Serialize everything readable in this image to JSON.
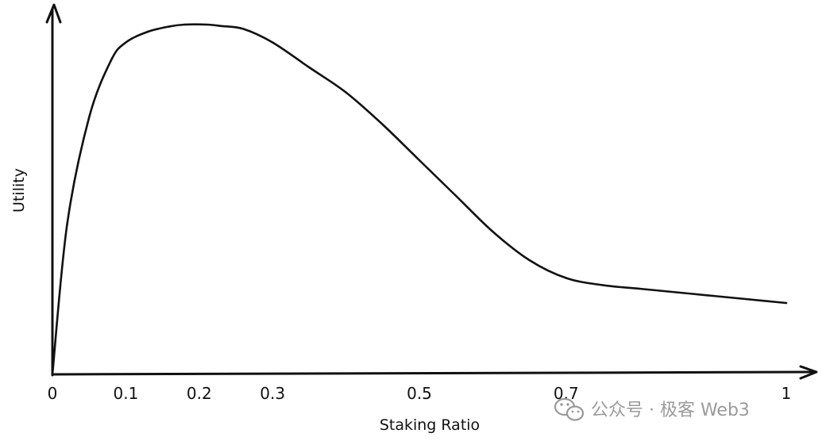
{
  "chart_data": {
    "type": "line",
    "xlabel": "Staking Ratio",
    "ylabel": "Utility",
    "xlim": [
      0,
      1
    ],
    "ylim": [
      0,
      1
    ],
    "x_ticks": [
      0,
      0.1,
      0.2,
      0.3,
      0.5,
      0.7,
      1
    ],
    "x_tick_labels": [
      "0",
      "0.1",
      "0.2",
      "0.3",
      "0.5",
      "0.7",
      "1"
    ],
    "grid": false,
    "series": [
      {
        "x": [
          0,
          0.02,
          0.05,
          0.08,
          0.1,
          0.13,
          0.16,
          0.18,
          0.21,
          0.23,
          0.26,
          0.3,
          0.35,
          0.4,
          0.45,
          0.5,
          0.55,
          0.6,
          0.65,
          0.7,
          0.75,
          0.8,
          0.85,
          0.9,
          0.95,
          1
        ],
        "y": [
          0,
          0.42,
          0.72,
          0.88,
          0.93,
          0.96,
          0.975,
          0.98,
          0.98,
          0.976,
          0.968,
          0.93,
          0.86,
          0.79,
          0.7,
          0.6,
          0.5,
          0.4,
          0.32,
          0.27,
          0.25,
          0.24,
          0.23,
          0.22,
          0.21,
          0.2
        ]
      }
    ]
  },
  "watermark": {
    "text": "公众号 · 极客 Web3"
  },
  "colors": {
    "line": "#111111",
    "watermark": "#9a9a9a"
  }
}
